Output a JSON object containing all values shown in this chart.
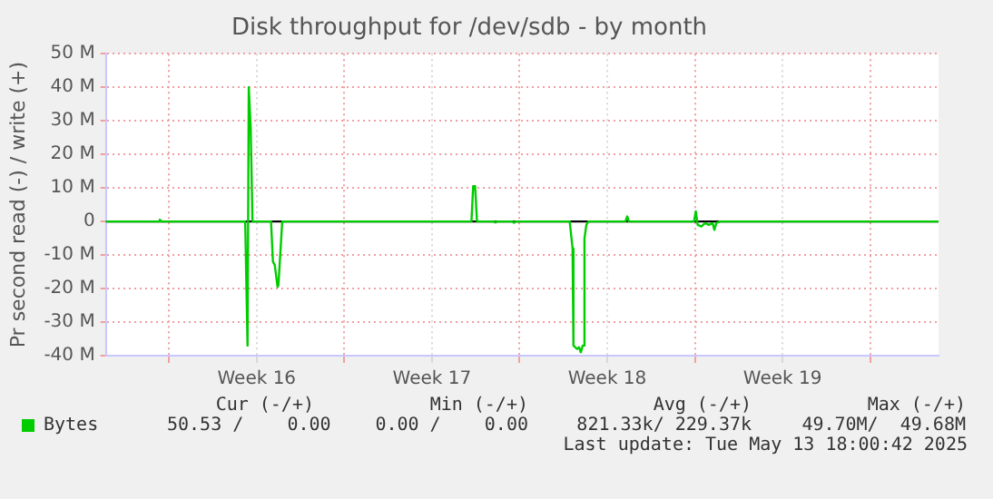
{
  "chart_data": {
    "type": "line",
    "title": "Disk throughput for /dev/sdb - by month",
    "ylabel": "Pr second read (-) / write (+)",
    "x": [
      "2025-04-11T11:30",
      "2025-04-13T13:25",
      "2025-04-13T15:05",
      "2025-04-13T17:00",
      "2025-04-17T01:00",
      "2025-04-17T03:15",
      "2025-04-17T04:25",
      "2025-04-17T06:15",
      "2025-04-17T08:00",
      "2025-04-18T01:45",
      "2025-04-18T03:35",
      "2025-04-18T05:20",
      "2025-04-18T08:00",
      "2025-04-18T08:50",
      "2025-04-18T12:30",
      "2025-04-26T01:50",
      "2025-04-26T03:30",
      "2025-04-26T05:20",
      "2025-04-26T07:10",
      "2025-04-26T23:10",
      "2025-04-27T00:50",
      "2025-04-27T02:40",
      "2025-04-27T17:00",
      "2025-04-27T18:40",
      "2025-04-27T20:30",
      "2025-04-30T00:00",
      "2025-04-30T02:45",
      "2025-04-30T03:35",
      "2025-04-30T07:05",
      "2025-04-30T08:55",
      "2025-04-30T10:40",
      "2025-04-30T12:30",
      "2025-04-30T14:10",
      "2025-04-30T16:00",
      "2025-04-30T17:50",
      "2025-05-02T05:20",
      "2025-05-02T07:10",
      "2025-05-02T08:50",
      "2025-05-04T23:10",
      "2025-05-05T00:50",
      "2025-05-05T02:40",
      "2025-05-05T06:15",
      "2025-05-05T09:45",
      "2025-05-05T13:15",
      "2025-05-05T17:00",
      "2025-05-05T18:40",
      "2025-05-05T20:30",
      "2025-05-06T00:00",
      "2025-05-14T17:30"
    ],
    "series": [
      {
        "name": "Bytes",
        "color": "#00cc00",
        "values": [
          0,
          0,
          0.5,
          0,
          0,
          -37,
          40,
          28,
          0,
          0,
          -12,
          -13,
          -19.5,
          -19,
          0,
          0,
          10.5,
          10.5,
          0,
          0,
          -0.3,
          0,
          0,
          -0.4,
          0,
          0,
          -8,
          -37,
          -38,
          -37.5,
          -39,
          -37,
          -5,
          -1,
          0,
          0,
          1.5,
          0,
          0,
          3,
          -1,
          -1.5,
          -0.5,
          -1,
          -0.5,
          -2.5,
          -0.5,
          0,
          0
        ]
      }
    ],
    "xlim": [
      "2025-04-11T11:30",
      "2025-05-14T17:30"
    ],
    "xticks": [
      {
        "value": "2025-04-14",
        "label": null
      },
      {
        "value": "2025-04-17T12:00",
        "label": "Week 16"
      },
      {
        "value": "2025-04-21",
        "label": null
      },
      {
        "value": "2025-04-24T12:00",
        "label": "Week 17"
      },
      {
        "value": "2025-04-28",
        "label": null
      },
      {
        "value": "2025-05-01T12:00",
        "label": "Week 18"
      },
      {
        "value": "2025-05-05",
        "label": null
      },
      {
        "value": "2025-05-08T12:00",
        "label": "Week 19"
      },
      {
        "value": "2025-05-12",
        "label": null
      }
    ],
    "ylim": [
      -40,
      50
    ],
    "yticks": [
      {
        "value": -40,
        "label": "-40 M"
      },
      {
        "value": -30,
        "label": "-30 M"
      },
      {
        "value": -20,
        "label": "-20 M"
      },
      {
        "value": -10,
        "label": "-10 M"
      },
      0,
      {
        "value": 10,
        "label": "10 M"
      },
      {
        "value": 20,
        "label": "20 M"
      },
      {
        "value": 30,
        "label": "30 M"
      },
      {
        "value": 40,
        "label": "40 M"
      },
      {
        "value": 50,
        "label": "50 M"
      }
    ],
    "ref_lines": [
      {
        "axis": "y",
        "value": 0,
        "color": "#000000",
        "line_style": "solid"
      }
    ],
    "grid": true,
    "legend": "bottom left",
    "marker": "none",
    "line_style": "solid",
    "annotations": [
      "Cur (-/+)",
      "Min (-/+)",
      "Avg (-/+)",
      "Max (-/+)",
      "50.53 /    0.00",
      "0.00 /    0.00",
      "821.33k/ 229.37k",
      "49.70M/  49.68M",
      "Last update: Tue May 13 18:00:42 2025"
    ]
  }
}
